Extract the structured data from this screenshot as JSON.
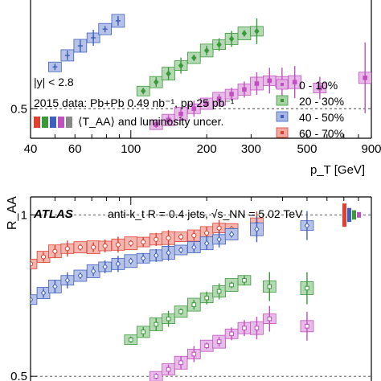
{
  "chart_data": [
    {
      "type": "scatter",
      "scale": "log-log",
      "xlabel": "p_T [GeV]",
      "ylabel": "",
      "x_ticks": [
        "40",
        "60",
        "100",
        "200",
        "300",
        "500",
        "900"
      ],
      "y_ticks": [
        "0.5"
      ],
      "grid": false,
      "dashed_reference_lines": [
        0.5
      ],
      "annotations": [
        "|y| < 2.8",
        "2015 data: Pb+Pb 0.49 nb⁻¹, pp 25 pb⁻¹",
        "⟨T_AA⟩ and luminosity uncer."
      ],
      "legend_position": "bottom-right",
      "series": [
        {
          "name": "0 - 10%",
          "color": "#c050c0",
          "marker": "square",
          "x": [
            126,
            141,
            158,
            178,
            200,
            224,
            251,
            282,
            316,
            355,
            398,
            447,
            562,
            850
          ],
          "y": [
            0.455,
            0.468,
            0.485,
            0.5,
            0.515,
            0.53,
            0.545,
            0.56,
            0.58,
            0.59,
            0.585,
            0.585,
            0.565,
            0.6
          ]
        },
        {
          "name": "20 - 30%",
          "color": "#3a9a3a",
          "marker": "diamond",
          "x": [
            112,
            126,
            141,
            158,
            178,
            200,
            224,
            251,
            282,
            316
          ],
          "y": [
            0.555,
            0.585,
            0.615,
            0.645,
            0.675,
            0.705,
            0.73,
            0.755,
            0.78,
            0.79
          ]
        },
        {
          "name": "40 - 50%",
          "color": "#4060c0",
          "marker": "plus",
          "x": [
            50,
            56,
            63,
            71,
            79,
            89
          ],
          "y": [
            0.64,
            0.685,
            0.725,
            0.76,
            0.8,
            0.84
          ]
        },
        {
          "name": "60 - 70%",
          "color": "#e04030",
          "marker": "circle",
          "x": [],
          "y": []
        }
      ]
    },
    {
      "type": "scatter",
      "scale": "log-log",
      "ylabel": "R_AA",
      "y_ticks": [
        "1",
        "0.5"
      ],
      "grid": false,
      "dashed_reference_lines": [
        1.0,
        0.5
      ],
      "annotations": [
        "ATLAS",
        "anti-k_t R = 0.4 jets, √s_NN = 5.02 TeV"
      ],
      "series": [
        {
          "name": "60 - 70%",
          "color": "#e04030",
          "marker": "open-circle",
          "x": [
            40,
            45,
            50,
            56,
            63,
            71,
            79,
            89,
            100,
            112,
            126,
            141,
            158,
            178,
            200,
            224,
            251,
            316
          ],
          "y": [
            0.81,
            0.835,
            0.855,
            0.865,
            0.87,
            0.87,
            0.875,
            0.88,
            0.885,
            0.89,
            0.9,
            0.905,
            0.91,
            0.915,
            0.925,
            0.945,
            0.94,
            0.96
          ]
        },
        {
          "name": "40 - 50%",
          "color": "#4060c0",
          "marker": "open-diamond",
          "x": [
            40,
            45,
            50,
            56,
            63,
            71,
            79,
            89,
            100,
            112,
            126,
            141,
            158,
            178,
            200,
            224,
            251,
            316,
            500
          ],
          "y": [
            0.695,
            0.715,
            0.735,
            0.755,
            0.77,
            0.785,
            0.8,
            0.81,
            0.82,
            0.83,
            0.84,
            0.85,
            0.86,
            0.87,
            0.885,
            0.9,
            0.92,
            0.94,
            0.955
          ]
        },
        {
          "name": "20 - 30%",
          "color": "#3a9a3a",
          "marker": "open-square",
          "x": [
            100,
            112,
            126,
            141,
            158,
            178,
            200,
            224,
            251,
            282,
            355,
            500
          ],
          "y": [
            0.585,
            0.605,
            0.625,
            0.64,
            0.66,
            0.68,
            0.7,
            0.72,
            0.74,
            0.755,
            0.735,
            0.73
          ]
        },
        {
          "name": "0 - 10%",
          "color": "#c050c0",
          "marker": "open-square",
          "x": [
            126,
            141,
            158,
            178,
            200,
            224,
            251,
            282,
            316,
            355,
            500
          ],
          "y": [
            0.5,
            0.515,
            0.53,
            0.55,
            0.57,
            0.58,
            0.6,
            0.615,
            0.615,
            0.64,
            0.62
          ]
        }
      ]
    }
  ]
}
